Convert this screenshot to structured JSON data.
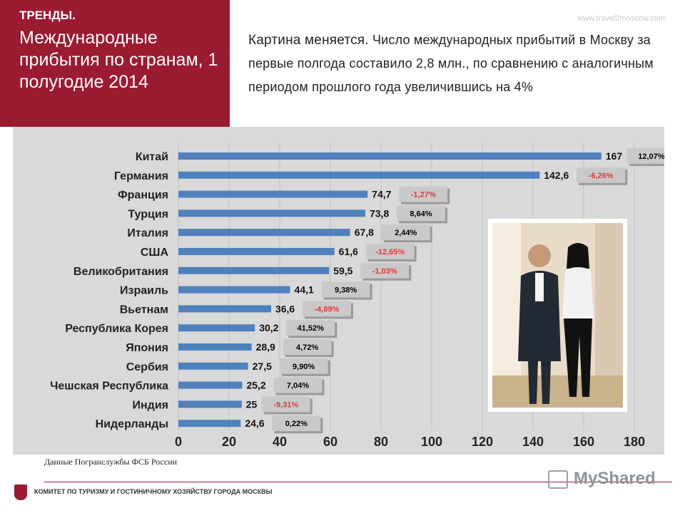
{
  "header": {
    "kicker": "ТРЕНДЫ.",
    "title": "Международные прибытия по странам, 1 полугодие 2014",
    "site": "www.travel2moscow.com"
  },
  "intro": {
    "lead": "Картина меняется.",
    "text": " Число международных прибытий в Москву за первые полгода составило 2,8 млн., по сравнению с аналогичным периодом прошлого года увеличившись на 4%"
  },
  "chart_data": {
    "type": "bar",
    "orientation": "horizontal",
    "categories": [
      "Китай",
      "Германия",
      "Франция",
      "Турция",
      "Италия",
      "США",
      "Великобритания",
      "Израиль",
      "Вьетнам",
      "Республика Корея",
      "Япония",
      "Сербия",
      "Чешская Республика",
      "Индия",
      "Нидерланды"
    ],
    "values": [
      167,
      142.6,
      74.7,
      73.8,
      67.8,
      61.6,
      59.5,
      44.1,
      36.6,
      30.2,
      28.9,
      27.5,
      25.2,
      25,
      24.6
    ],
    "value_labels": [
      "167",
      "142,6",
      "74,7",
      "73,8",
      "67,8",
      "61,6",
      "59,5",
      "44,1",
      "36,6",
      "30,2",
      "28,9",
      "27,5",
      "25,2",
      "25",
      "24,6"
    ],
    "changes": [
      "12,07%",
      "-6,26%",
      "-1,27%",
      "8,64%",
      "2,44%",
      "-12,65%",
      "-1,03%",
      "9,38%",
      "-4,89%",
      "41,52%",
      "4,72%",
      "9,90%",
      "7,04%",
      "-9,31%",
      "0,22%"
    ],
    "xlim": [
      0,
      180
    ],
    "xticks": [
      "0",
      "20",
      "40",
      "60",
      "80",
      "100",
      "120",
      "140",
      "160",
      "180"
    ],
    "xlabel": "",
    "ylabel": "",
    "grid": "vertical",
    "bar_color": "#4f81bd",
    "positive_change_color": "#000000",
    "negative_change_color": "#e03a3a"
  },
  "photo": {
    "alt": "photo-two-people"
  },
  "source": "Данные Погранслужбы ФСБ России",
  "footer": {
    "text": "КОМИТЕТ ПО ТУРИЗМУ И ГОСТИНИЧНОМУ ХОЗЯЙСТВУ ГОРОДА МОСКВЫ",
    "watermark": "MyShared"
  }
}
